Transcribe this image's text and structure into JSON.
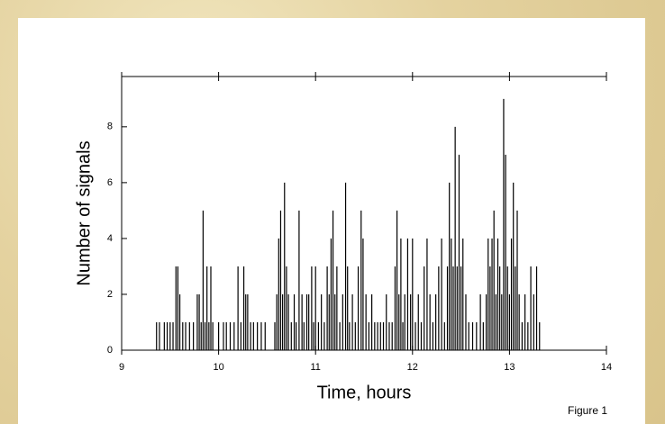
{
  "chart_data": {
    "type": "spike",
    "xlabel": "Time, hours",
    "ylabel": "Number of signals",
    "caption": "Figure 1",
    "color": "#000000",
    "xlim": [
      9,
      14
    ],
    "xticks": [
      9,
      10,
      11,
      12,
      13,
      14
    ],
    "ylim": [
      0,
      9.8
    ],
    "yticks": [
      0,
      2,
      4,
      6,
      8
    ],
    "x": [
      9.36,
      9.39,
      9.44,
      9.47,
      9.5,
      9.53,
      9.56,
      9.58,
      9.6,
      9.63,
      9.66,
      9.7,
      9.74,
      9.78,
      9.8,
      9.82,
      9.84,
      9.86,
      9.88,
      9.9,
      9.92,
      9.94,
      10.0,
      10.05,
      10.08,
      10.12,
      10.16,
      10.2,
      10.23,
      10.26,
      10.28,
      10.3,
      10.33,
      10.36,
      10.4,
      10.44,
      10.48,
      10.58,
      10.6,
      10.62,
      10.64,
      10.66,
      10.68,
      10.7,
      10.72,
      10.75,
      10.78,
      10.8,
      10.83,
      10.86,
      10.88,
      10.91,
      10.93,
      10.96,
      10.98,
      11.0,
      11.03,
      11.06,
      11.09,
      11.12,
      11.14,
      11.16,
      11.18,
      11.2,
      11.22,
      11.25,
      11.28,
      11.31,
      11.33,
      11.35,
      11.38,
      11.41,
      11.44,
      11.47,
      11.49,
      11.52,
      11.55,
      11.58,
      11.61,
      11.64,
      11.67,
      11.7,
      11.73,
      11.76,
      11.79,
      11.82,
      11.84,
      11.86,
      11.88,
      11.9,
      11.92,
      11.95,
      11.98,
      12.0,
      12.03,
      12.06,
      12.09,
      12.12,
      12.15,
      12.18,
      12.21,
      12.24,
      12.27,
      12.3,
      12.33,
      12.36,
      12.38,
      12.4,
      12.42,
      12.44,
      12.46,
      12.48,
      12.5,
      12.52,
      12.55,
      12.58,
      12.62,
      12.66,
      12.7,
      12.73,
      12.76,
      12.78,
      12.8,
      12.82,
      12.84,
      12.86,
      12.88,
      12.9,
      12.92,
      12.94,
      12.96,
      12.98,
      13.0,
      13.02,
      13.04,
      13.06,
      13.08,
      13.1,
      13.13,
      13.16,
      13.19,
      13.22,
      13.25,
      13.28,
      13.31
    ],
    "values": [
      1,
      1,
      1,
      1,
      1,
      1,
      3,
      3,
      2,
      1,
      1,
      1,
      1,
      2,
      2,
      1,
      5,
      1,
      3,
      1,
      3,
      1,
      1,
      1,
      1,
      1,
      1,
      3,
      1,
      3,
      2,
      2,
      1,
      1,
      1,
      1,
      1,
      1,
      2,
      4,
      5,
      2,
      6,
      3,
      2,
      1,
      2,
      1,
      5,
      2,
      1,
      2,
      2,
      3,
      1,
      3,
      1,
      2,
      1,
      3,
      2,
      4,
      5,
      2,
      3,
      1,
      2,
      6,
      3,
      1,
      2,
      1,
      3,
      5,
      4,
      2,
      1,
      2,
      1,
      1,
      1,
      1,
      2,
      1,
      1,
      3,
      5,
      2,
      4,
      1,
      2,
      4,
      2,
      4,
      1,
      2,
      1,
      3,
      4,
      2,
      1,
      2,
      3,
      4,
      1,
      3,
      6,
      4,
      3,
      8,
      3,
      7,
      3,
      4,
      2,
      1,
      1,
      1,
      2,
      1,
      2,
      4,
      3,
      4,
      5,
      2,
      4,
      3,
      2,
      9,
      7,
      3,
      2,
      4,
      6,
      3,
      5,
      2,
      1,
      2,
      1,
      3,
      2,
      3,
      1
    ]
  }
}
